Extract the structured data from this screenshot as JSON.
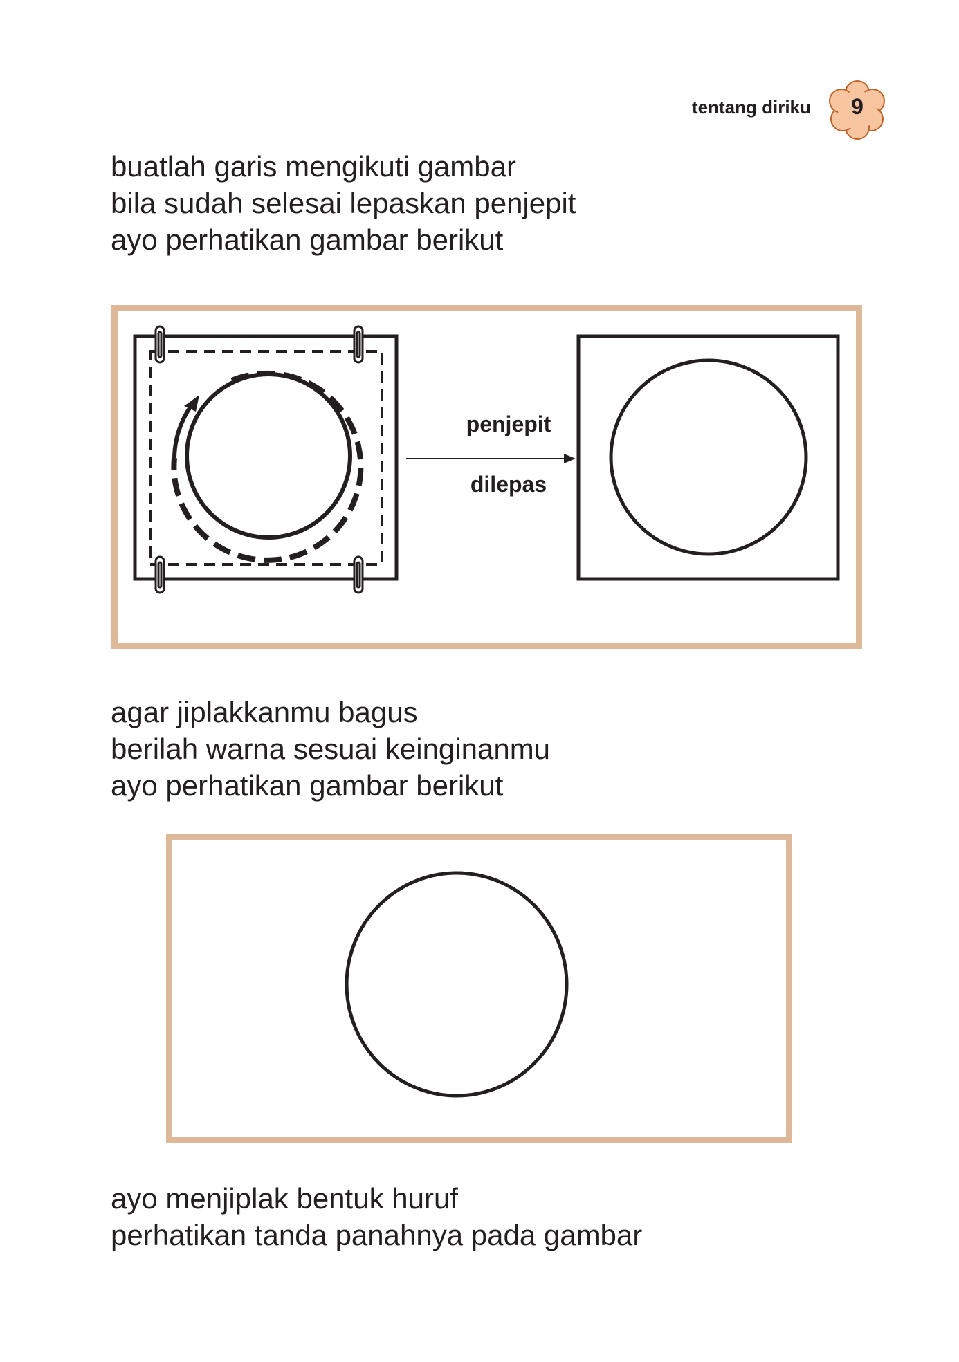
{
  "header": {
    "section_title": "tentang diriku",
    "page_number": "9",
    "badge_color": "#f7c6a0",
    "badge_outline": "#c0622a"
  },
  "blocks": [
    {
      "lines": [
        "buatlah garis mengikuti gambar",
        "bila sudah selesai lepaskan penjepit",
        "ayo perhatikan gambar berikut"
      ]
    },
    {
      "lines": [
        "agar jiplakkanmu bagus",
        "berilah warna sesuai keinginanmu",
        "ayo perhatikan gambar berikut"
      ]
    },
    {
      "lines": [
        "ayo menjiplak bentuk huruf",
        "perhatikan tanda panahnya pada gambar"
      ]
    }
  ],
  "figure1": {
    "arrow_label_top": "penjepit",
    "arrow_label_bottom": "dilepas",
    "left_panel_icons": [
      "paper-clip-icon",
      "paper-clip-icon",
      "paper-clip-icon",
      "paper-clip-icon",
      "curved-arrow-icon"
    ]
  },
  "frame_color": "#deb999"
}
